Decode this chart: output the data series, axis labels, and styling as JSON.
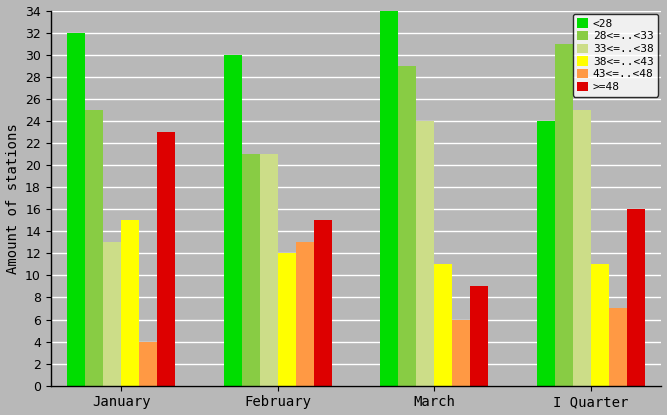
{
  "categories": [
    "January",
    "February",
    "March",
    "I Quarter"
  ],
  "series": [
    {
      "label": "<28",
      "color": "#00dd00",
      "values": [
        32,
        30,
        34,
        24
      ]
    },
    {
      "label": "28<=..<33",
      "color": "#88cc44",
      "values": [
        25,
        21,
        29,
        31
      ]
    },
    {
      "label": "33<=..<38",
      "color": "#ccdd88",
      "values": [
        13,
        21,
        24,
        25
      ]
    },
    {
      "label": "38<=..<43",
      "color": "#ffff00",
      "values": [
        15,
        12,
        11,
        11
      ]
    },
    {
      "label": "43<=..<48",
      "color": "#ff9944",
      "values": [
        4,
        13,
        6,
        7
      ]
    },
    {
      "label": ">=48",
      "color": "#dd0000",
      "values": [
        23,
        15,
        9,
        16
      ]
    }
  ],
  "ylabel": "Amount of stations",
  "ylim": [
    0,
    34
  ],
  "yticks": [
    0,
    2,
    4,
    6,
    8,
    10,
    12,
    14,
    16,
    18,
    20,
    22,
    24,
    26,
    28,
    30,
    32,
    34
  ],
  "background_color": "#b8b8b8",
  "bar_width": 0.115,
  "fig_width": 6.67,
  "fig_height": 4.15,
  "dpi": 100
}
